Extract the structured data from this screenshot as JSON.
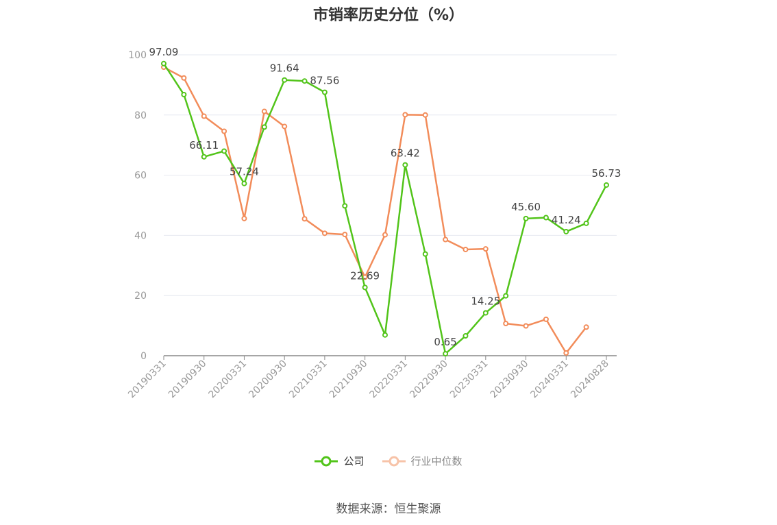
{
  "chart_data": {
    "type": "line",
    "title": "市销率历史分位（%）",
    "x_tick_labels": [
      "20190331",
      "20190930",
      "20200331",
      "20200930",
      "20210331",
      "20210930",
      "20220331",
      "20220930",
      "20230331",
      "20230930",
      "20240331",
      "20240828"
    ],
    "y_ticks": [
      0,
      20,
      40,
      60,
      80,
      100
    ],
    "ylim": [
      0,
      100
    ],
    "grid": true,
    "legend_position": "bottom-center",
    "series": [
      {
        "name": "公司",
        "color": "#52c41a",
        "values": [
          97.09,
          86.8,
          66.11,
          68.0,
          57.24,
          76.0,
          91.64,
          91.3,
          87.56,
          49.8,
          22.69,
          6.9,
          63.42,
          33.8,
          0.65,
          6.6,
          14.25,
          19.9,
          45.6,
          45.9,
          41.24,
          44.0,
          56.73
        ],
        "labels": [
          "97.09",
          "",
          "66.11",
          "",
          "57.24",
          "",
          "91.64",
          "",
          "87.56",
          "",
          "22.69",
          "",
          "63.42",
          "",
          "0.65",
          "",
          "14.25",
          "",
          "45.60",
          "",
          "41.24",
          "",
          "56.73"
        ]
      },
      {
        "name": "行业中位数",
        "color": "#f28c5a",
        "values": [
          95.9,
          92.3,
          79.6,
          74.6,
          45.6,
          81.2,
          76.2,
          45.5,
          40.7,
          40.3,
          26.1,
          40.2,
          80.1,
          80.0,
          38.6,
          35.3,
          35.5,
          10.7,
          9.9,
          12.1,
          0.9,
          9.5,
          null
        ]
      }
    ]
  },
  "legend": {
    "company": "公司",
    "industry": "行业中位数"
  },
  "source": "数据来源：恒生聚源"
}
